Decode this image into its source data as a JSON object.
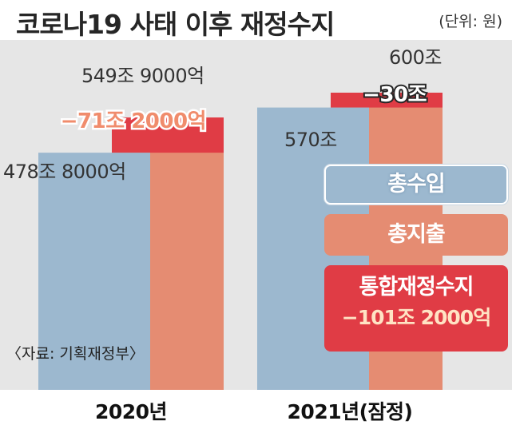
{
  "header": {
    "title": "코로나19 사태 이후 재정수지",
    "unit": "(단위: 원)"
  },
  "legend": {
    "revenue": "총수입",
    "expense": "총지출",
    "balance": "통합재정수지",
    "balance_value": "−101조 2000억"
  },
  "source": "〈자료: 기획재정부〉",
  "colors": {
    "revenue": "#9cb8cf",
    "expense": "#e58c72",
    "deficit": "#e03c45",
    "deficit_label": "#f08c6c",
    "text": "#333333"
  },
  "chart_data": {
    "type": "bar",
    "title": "코로나19 사태 이후 재정수지",
    "categories": [
      "2020년",
      "2021년(잠정)"
    ],
    "series": [
      {
        "name": "총수입",
        "values": [
          478.8,
          570
        ],
        "labels": [
          "478조 8000억",
          "570조"
        ]
      },
      {
        "name": "총지출",
        "values": [
          549.9,
          600
        ],
        "labels": [
          "549조 9000억",
          "600조"
        ]
      }
    ],
    "deficit": {
      "values": [
        -71.2,
        -30
      ],
      "labels": [
        "−71조 2000억",
        "−30조"
      ]
    },
    "ylim": [
      0,
      620
    ]
  }
}
